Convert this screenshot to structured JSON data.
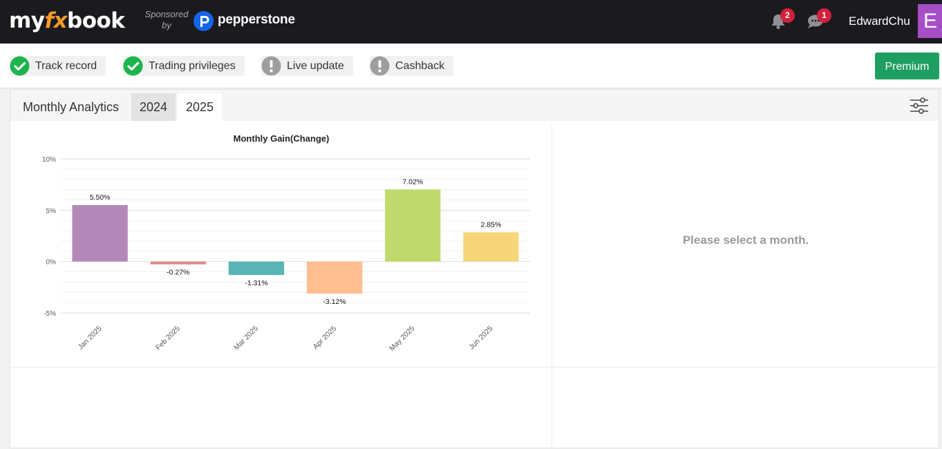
{
  "header": {
    "logo": {
      "part1": "my",
      "part2": "fx",
      "part3": "book"
    },
    "sponsor_line1": "Sponsored",
    "sponsor_line2": "by",
    "sponsor_name": "pepperstone",
    "notifications_count": "2",
    "messages_count": "1",
    "username": "EdwardChu",
    "avatar_letter": "E"
  },
  "status_items": [
    {
      "label": "Track record",
      "state": "ok",
      "icon": "check-circle-icon"
    },
    {
      "label": "Trading privileges",
      "state": "ok",
      "icon": "check-circle-icon"
    },
    {
      "label": "Live update",
      "state": "warning",
      "icon": "exclamation-circle-icon"
    },
    {
      "label": "Cashback",
      "state": "warning",
      "icon": "exclamation-circle-icon"
    }
  ],
  "premium_label": "Premium",
  "analytics": {
    "title": "Monthly Analytics",
    "tabs": [
      {
        "label": "2024",
        "selected": false
      },
      {
        "label": "2025",
        "selected": true
      }
    ],
    "placeholder": "Please select a month."
  },
  "colors": {
    "ok": "#1db34d",
    "warning": "#9e9e9e",
    "premium": "#1f9e62",
    "badge": "#d3213c"
  },
  "chart_data": {
    "type": "bar",
    "title": "Monthly Gain(Change)",
    "xlabel": "",
    "ylabel": "",
    "categories": [
      "Jan 2025",
      "Feb 2025",
      "Mar 2025",
      "Apr 2025",
      "May 2025",
      "Jun 2025"
    ],
    "values": [
      5.5,
      -0.27,
      -1.31,
      -3.12,
      7.02,
      2.85
    ],
    "value_labels": [
      "5.50%",
      "-0.27%",
      "-1.31%",
      "-3.12%",
      "7.02%",
      "2.85%"
    ],
    "bar_colors": [
      "#b489b9",
      "#e08a86",
      "#5bb5b5",
      "#ffbd92",
      "#bfd96c",
      "#f7d679"
    ],
    "ylim": [
      -5,
      10
    ],
    "yticks": [
      -5,
      0,
      5,
      10
    ],
    "ytick_labels": [
      "-5%",
      "0%",
      "5%",
      "10%"
    ],
    "grid": true,
    "legend": "none"
  }
}
